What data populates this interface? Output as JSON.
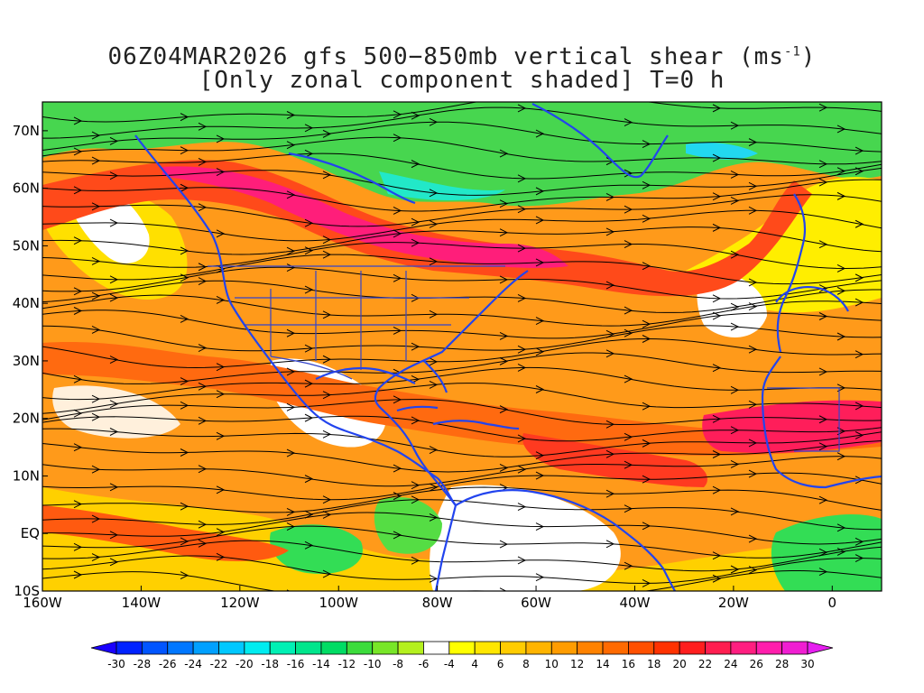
{
  "title": {
    "line1_prefix": "06Z04MAR2026 gfs 500−850mb vertical shear (ms",
    "line1_sup": "-1",
    "line1_suffix": ")",
    "line2": "[Only zonal component shaded] T=0 h"
  },
  "map": {
    "lon_range": [
      -160,
      10
    ],
    "lat_range": [
      -10,
      75
    ],
    "lat_ticks": [
      {
        "value": 70,
        "label": "70N"
      },
      {
        "value": 60,
        "label": "60N"
      },
      {
        "value": 50,
        "label": "50N"
      },
      {
        "value": 40,
        "label": "40N"
      },
      {
        "value": 30,
        "label": "30N"
      },
      {
        "value": 20,
        "label": "20N"
      },
      {
        "value": 10,
        "label": "10N"
      },
      {
        "value": 0,
        "label": "EQ"
      },
      {
        "value": -10,
        "label": "10S"
      }
    ],
    "lon_ticks": [
      {
        "value": -160,
        "label": "160W"
      },
      {
        "value": -140,
        "label": "140W"
      },
      {
        "value": -120,
        "label": "120W"
      },
      {
        "value": -100,
        "label": "100W"
      },
      {
        "value": -80,
        "label": "80W"
      },
      {
        "value": -60,
        "label": "60W"
      },
      {
        "value": -40,
        "label": "40W"
      },
      {
        "value": -20,
        "label": "20W"
      },
      {
        "value": 0,
        "label": "0"
      }
    ],
    "coastline_color": "#2244ee",
    "streamline_color": "#000000"
  },
  "colorbar": {
    "labels": [
      "-30",
      "-28",
      "-26",
      "-24",
      "-22",
      "-20",
      "-18",
      "-16",
      "-14",
      "-12",
      "-10",
      "-8",
      "-6",
      "-4",
      "4",
      "6",
      "8",
      "10",
      "12",
      "14",
      "16",
      "18",
      "20",
      "22",
      "24",
      "26",
      "28",
      "30"
    ],
    "colors": [
      "#1a00ff",
      "#0022ff",
      "#0055ff",
      "#0077ff",
      "#00a0ff",
      "#00c8ff",
      "#00ecf0",
      "#00f0b4",
      "#00e68c",
      "#00dc64",
      "#3cdc3c",
      "#78e628",
      "#b4f01e",
      "#ffffff",
      "#ffff00",
      "#ffe600",
      "#ffcc00",
      "#ffb400",
      "#ff9c00",
      "#ff8200",
      "#ff6a00",
      "#ff5000",
      "#ff3200",
      "#ff1e1e",
      "#ff1e50",
      "#ff1e80",
      "#ff1eac",
      "#f01ed2",
      "#e61ef0"
    ]
  }
}
